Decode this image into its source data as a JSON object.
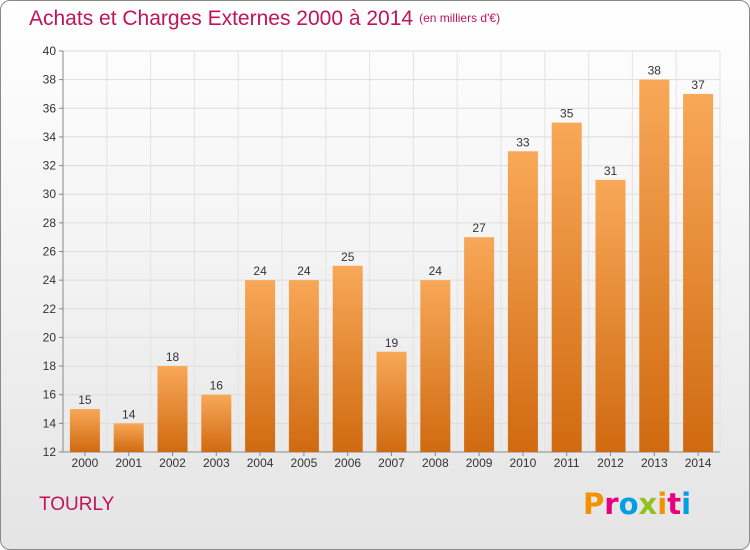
{
  "chart_data": {
    "type": "bar",
    "title": "Achats et Charges Externes 2000 à 2014",
    "subtitle": "(en milliers d'€)",
    "categories": [
      "2000",
      "2001",
      "2002",
      "2003",
      "2004",
      "2005",
      "2006",
      "2007",
      "2008",
      "2009",
      "2010",
      "2011",
      "2012",
      "2013",
      "2014"
    ],
    "values": [
      15,
      14,
      18,
      16,
      24,
      24,
      25,
      19,
      24,
      27,
      33,
      35,
      31,
      38,
      37
    ],
    "ylim": [
      12,
      40
    ],
    "yticks": [
      12,
      14,
      16,
      18,
      20,
      22,
      24,
      26,
      28,
      30,
      32,
      34,
      36,
      38,
      40
    ],
    "grid": true,
    "xlabel": "",
    "ylabel": ""
  },
  "location": "TOURLY",
  "logo": {
    "text": "Proxiti",
    "colors": [
      "#f39200",
      "#e6007e",
      "#009fe3",
      "#95c11f",
      "#f39200",
      "#e6007e",
      "#009fe3"
    ]
  },
  "colors": {
    "accent": "#c0145a",
    "bar_light": "#f8a858",
    "bar_dark": "#d06a10"
  }
}
